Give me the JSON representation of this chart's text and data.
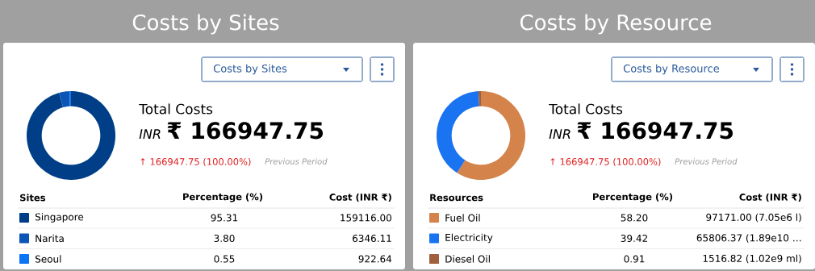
{
  "chart_data": [
    {
      "type": "donut",
      "title": "Costs by Sites",
      "legend_title": "Sites",
      "categories": [
        "Singapore",
        "Narita",
        "Seoul"
      ],
      "values": [
        95.31,
        3.8,
        0.55
      ],
      "colors": [
        "#003f88",
        "#0a55b5",
        "#0a74f5"
      ],
      "value_labels": [
        "95.31",
        "3.80",
        "0.55"
      ],
      "legend": "bottom",
      "annotations": [
        "Costs by Sites",
        "Total Costs",
        "INR",
        "₹ 166947.75",
        "↑ 166947.75 (100.00%)",
        "Previous Period",
        "Percentage (%)",
        "Cost (INR ₹)",
        "159116.00",
        "6346.11",
        "922.64"
      ]
    },
    {
      "type": "donut",
      "title": "Costs by Resource",
      "legend_title": "Resources",
      "categories": [
        "Fuel Oil",
        "Electricity",
        "Diesel Oil"
      ],
      "values": [
        58.2,
        39.42,
        0.91
      ],
      "colors": [
        "#d4834a",
        "#1a73f0",
        "#a0603e"
      ],
      "value_labels": [
        "58.20",
        "39.42",
        "0.91"
      ],
      "legend": "bottom",
      "annotations": [
        "Costs by Resource",
        "Total Costs",
        "INR",
        "₹ 166947.75",
        "↑ 166947.75 (100.00%)",
        "Previous Period",
        "Percentage (%)",
        "Cost (INR ₹)",
        "97171.00 (7.05e6 l)",
        "65806.37 (1.89e10 …",
        "1516.82 (1.02e9 ml)"
      ]
    }
  ]
}
